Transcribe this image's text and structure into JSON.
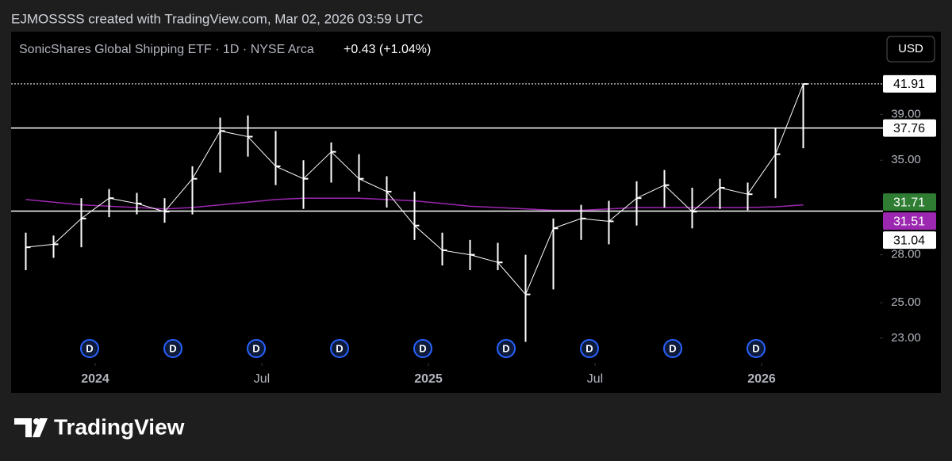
{
  "header": {
    "credit": "EJMOSSSS created with TradingView.com, Mar 02, 2026 03:59 UTC"
  },
  "footer": {
    "brand": "TradingView"
  },
  "chart_data": {
    "type": "hlc",
    "title": "SonicShares Global Shipping ETF · 1D · NYSE Arca",
    "change": "+0.43 (+1.04%)",
    "currency": "USD",
    "log_scale": true,
    "grid": false,
    "bar_color": "#ffffff",
    "x": [
      "2023-10",
      "2023-11",
      "2023-12",
      "2024-01",
      "2024-02",
      "2024-03",
      "2024-04",
      "2024-05",
      "2024-06",
      "2024-07",
      "2024-08",
      "2024-09",
      "2024-10",
      "2024-11",
      "2024-12",
      "2025-01",
      "2025-02",
      "2025-03",
      "2025-04",
      "2025-05",
      "2025-06",
      "2025-07",
      "2025-08",
      "2025-09",
      "2025-10",
      "2025-11",
      "2025-12",
      "2026-01",
      "2026-02"
    ],
    "high": [
      29.5,
      29.3,
      32.0,
      32.7,
      32.4,
      32.0,
      34.5,
      38.7,
      38.9,
      37.5,
      35.0,
      36.5,
      35.5,
      33.7,
      32.5,
      29.5,
      29.0,
      28.8,
      28.0,
      30.5,
      31.5,
      31.8,
      33.3,
      34.2,
      32.8,
      33.5,
      33.2,
      37.8,
      41.9
    ],
    "low": [
      27.0,
      27.8,
      28.5,
      30.6,
      30.8,
      30.2,
      30.8,
      34.0,
      35.3,
      33.0,
      31.2,
      33.2,
      32.5,
      31.3,
      29.0,
      27.3,
      27.0,
      27.0,
      22.8,
      25.8,
      29.0,
      28.7,
      30.0,
      31.3,
      29.8,
      31.2,
      31.1,
      32.0,
      36.0
    ],
    "close": [
      28.5,
      28.7,
      30.5,
      32.0,
      31.6,
      31.0,
      33.5,
      37.5,
      37.0,
      34.5,
      33.5,
      35.7,
      33.5,
      32.5,
      30.0,
      28.3,
      28.0,
      27.5,
      25.5,
      29.8,
      30.5,
      30.3,
      32.0,
      33.0,
      31.0,
      32.8,
      32.3,
      35.5,
      41.9
    ],
    "ma": {
      "color": "#9c27b0",
      "values": [
        31.9,
        31.7,
        31.5,
        31.4,
        31.3,
        31.2,
        31.3,
        31.5,
        31.7,
        31.9,
        32.0,
        32.0,
        32.0,
        31.9,
        31.8,
        31.6,
        31.4,
        31.3,
        31.2,
        31.1,
        31.1,
        31.2,
        31.3,
        31.3,
        31.3,
        31.3,
        31.3,
        31.35,
        31.5
      ]
    },
    "ylim": [
      21.7,
      47.4
    ],
    "yticks": [
      {
        "value": 23,
        "label": "23.00"
      },
      {
        "value": 25,
        "label": "25.00"
      },
      {
        "value": 28,
        "label": "28.00"
      },
      {
        "value": 35,
        "label": "35.00"
      },
      {
        "value": 39,
        "label": "39.00"
      }
    ],
    "xticks": [
      {
        "value": "2024-01",
        "label": "2024"
      },
      {
        "value": "2024-07",
        "label": "Jul"
      },
      {
        "value": "2025-01",
        "label": "2025"
      },
      {
        "value": "2025-07",
        "label": "Jul"
      },
      {
        "value": "2026-01",
        "label": "2026"
      }
    ],
    "price_labels": [
      {
        "value": 41.91,
        "line": "dotted",
        "bg": "#ffffff",
        "fg": "#000000"
      },
      {
        "value": 37.76,
        "line": "solid",
        "bg": "#ffffff",
        "fg": "#000000"
      },
      {
        "value": 31.71,
        "bg": "#2e7d32",
        "fg": "#ffffff"
      },
      {
        "value": 31.51,
        "bg": "#9c27b0",
        "fg": "#ffffff"
      },
      {
        "value": 31.04,
        "line": "solid",
        "bg": "#ffffff",
        "fg": "#000000"
      }
    ],
    "dividends": {
      "label": "D",
      "color": "#2962ff",
      "x": [
        "2023-12",
        "2024-03",
        "2024-06",
        "2024-09",
        "2024-12",
        "2025-03",
        "2025-06",
        "2025-09",
        "2025-12"
      ]
    }
  }
}
